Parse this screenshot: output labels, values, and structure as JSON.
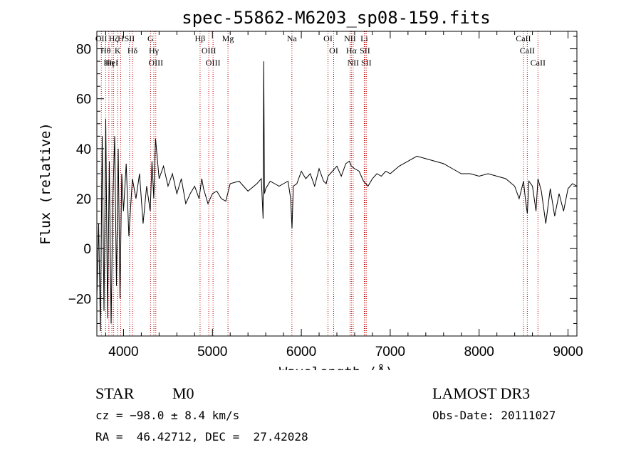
{
  "chart_data": {
    "type": "line",
    "title": "spec-55862-M6203_sp08-159.fits",
    "xlabel": "Wavelength (Å)",
    "ylabel": "Flux (relative)",
    "xlim": [
      3700,
      9100
    ],
    "ylim": [
      -35,
      87
    ],
    "xticks": [
      4000,
      5000,
      6000,
      7000,
      8000,
      9000
    ],
    "yticks": [
      -20,
      0,
      20,
      40,
      60,
      80
    ],
    "grid": false,
    "series": [
      {
        "name": "flux",
        "x": [
          3700,
          3720,
          3740,
          3760,
          3780,
          3800,
          3820,
          3840,
          3860,
          3880,
          3900,
          3920,
          3940,
          3960,
          3980,
          4000,
          4030,
          4060,
          4100,
          4140,
          4180,
          4220,
          4260,
          4300,
          4320,
          4340,
          4360,
          4400,
          4450,
          4500,
          4550,
          4600,
          4650,
          4700,
          4750,
          4800,
          4850,
          4880,
          4900,
          4950,
          5000,
          5050,
          5100,
          5150,
          5200,
          5300,
          5400,
          5500,
          5550,
          5570,
          5577,
          5585,
          5600,
          5650,
          5700,
          5750,
          5800,
          5850,
          5880,
          5895,
          5910,
          5950,
          6000,
          6050,
          6100,
          6150,
          6200,
          6250,
          6280,
          6300,
          6350,
          6400,
          6450,
          6500,
          6540,
          6563,
          6600,
          6650,
          6700,
          6750,
          6800,
          6850,
          6900,
          6950,
          7000,
          7100,
          7200,
          7300,
          7400,
          7500,
          7600,
          7700,
          7800,
          7900,
          8000,
          8100,
          8200,
          8300,
          8400,
          8450,
          8500,
          8520,
          8542,
          8560,
          8600,
          8640,
          8662,
          8700,
          8750,
          8800,
          8850,
          8900,
          8950,
          9000,
          9050,
          9100
        ],
        "y": [
          -20,
          10,
          -33,
          45,
          -25,
          52,
          -28,
          35,
          -30,
          20,
          45,
          -15,
          40,
          -20,
          30,
          15,
          34,
          5,
          28,
          20,
          30,
          10,
          25,
          15,
          35,
          20,
          44,
          28,
          33,
          25,
          30,
          22,
          28,
          18,
          22,
          25,
          20,
          28,
          24,
          18,
          22,
          23,
          20,
          19,
          26,
          27,
          23,
          26,
          28,
          12,
          75,
          22,
          24,
          27,
          26,
          25,
          26,
          27,
          20,
          8,
          25,
          26,
          31,
          28,
          30,
          25,
          32,
          27,
          26,
          29,
          31,
          33,
          29,
          34,
          35,
          33,
          32,
          31,
          27,
          25,
          28,
          30,
          29,
          31,
          30,
          33,
          35,
          37,
          36,
          35,
          34,
          32,
          30,
          30,
          29,
          30,
          29,
          28,
          25,
          20,
          27,
          20,
          14,
          27,
          25,
          15,
          28,
          23,
          10,
          24,
          13,
          22,
          15,
          24,
          26,
          25
        ]
      }
    ],
    "line_markers": [
      {
        "wavelength": 3750,
        "label": "OII"
      },
      {
        "wavelength": 3798,
        "label": "Hθ"
      },
      {
        "wavelength": 3835,
        "label": "Hη"
      },
      {
        "wavelength": 3869,
        "label": "HeI"
      },
      {
        "wavelength": 3889,
        "label": "Hζ"
      },
      {
        "wavelength": 3934,
        "label": "K"
      },
      {
        "wavelength": 3968,
        "label": "H"
      },
      {
        "wavelength": 4068,
        "label": "SII"
      },
      {
        "wavelength": 4101,
        "label": "Hδ"
      },
      {
        "wavelength": 4304,
        "label": "G"
      },
      {
        "wavelength": 4341,
        "label": "Hγ"
      },
      {
        "wavelength": 4363,
        "label": "OIII"
      },
      {
        "wavelength": 4861,
        "label": "Hβ"
      },
      {
        "wavelength": 4959,
        "label": "OIII"
      },
      {
        "wavelength": 5007,
        "label": "OIII"
      },
      {
        "wavelength": 5175,
        "label": "Mg"
      },
      {
        "wavelength": 5894,
        "label": "Na"
      },
      {
        "wavelength": 6300,
        "label": "OI"
      },
      {
        "wavelength": 6364,
        "label": "OI"
      },
      {
        "wavelength": 6548,
        "label": "NII"
      },
      {
        "wavelength": 6563,
        "label": "Hα"
      },
      {
        "wavelength": 6583,
        "label": "NII"
      },
      {
        "wavelength": 6708,
        "label": "Li"
      },
      {
        "wavelength": 6716,
        "label": "SII"
      },
      {
        "wavelength": 6731,
        "label": "SII"
      },
      {
        "wavelength": 8498,
        "label": "CaII"
      },
      {
        "wavelength": 8542,
        "label": "CaII"
      },
      {
        "wavelength": 8662,
        "label": "CaII"
      }
    ]
  },
  "info": {
    "object_class": "STAR",
    "subclass": "M0",
    "survey": "LAMOST DR3",
    "cz": "cz = −98.0 ± 8.4 km/s",
    "obs_date": "Obs-Date: 20111027",
    "coords": "RA =  46.42712, DEC =  27.42028"
  },
  "colors": {
    "spectrum": "#000000",
    "marker": "#c00000",
    "axis": "#000000"
  }
}
